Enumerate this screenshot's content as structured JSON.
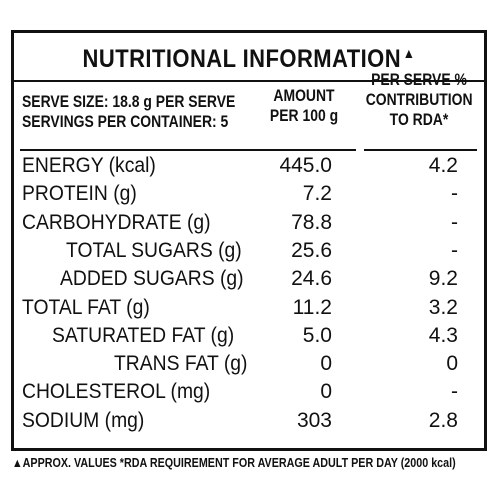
{
  "title": "NUTRITIONAL INFORMATION",
  "title_mark": "▲",
  "header": {
    "serve_size": "SERVE SIZE: 18.8 g PER SERVE",
    "servings": "SERVINGS PER CONTAINER: 5",
    "amount_line1": "AMOUNT",
    "amount_line2": "PER 100 g",
    "rda_line1": "PER SERVE %",
    "rda_line2": "CONTRIBUTION",
    "rda_line3": "TO RDA*"
  },
  "rows": [
    {
      "label": "ENERGY (kcal)",
      "amount": "445.0",
      "rda": "4.2"
    },
    {
      "label": "PROTEIN (g)",
      "amount": "7.2",
      "rda": "-"
    },
    {
      "label": "CARBOHYDRATE (g)",
      "amount": "78.8",
      "rda": "-"
    },
    {
      "label": "TOTAL SUGARS (g)",
      "amount": "25.6",
      "rda": "-"
    },
    {
      "label": "ADDED SUGARS (g)",
      "amount": "24.6",
      "rda": "9.2"
    },
    {
      "label": "TOTAL FAT (g)",
      "amount": "11.2",
      "rda": "3.2"
    },
    {
      "label": "SATURATED FAT (g)",
      "amount": "5.0",
      "rda": "4.3"
    },
    {
      "label": "TRANS FAT (g)",
      "amount": "0",
      "rda": "0"
    },
    {
      "label": "CHOLESTEROL (mg)",
      "amount": "0",
      "rda": "-"
    },
    {
      "label": "SODIUM (mg)",
      "amount": "303",
      "rda": "2.8"
    }
  ],
  "footnote": "▲APPROX. VALUES *RDA REQUIREMENT FOR AVERAGE ADULT PER DAY (2000 kcal)"
}
